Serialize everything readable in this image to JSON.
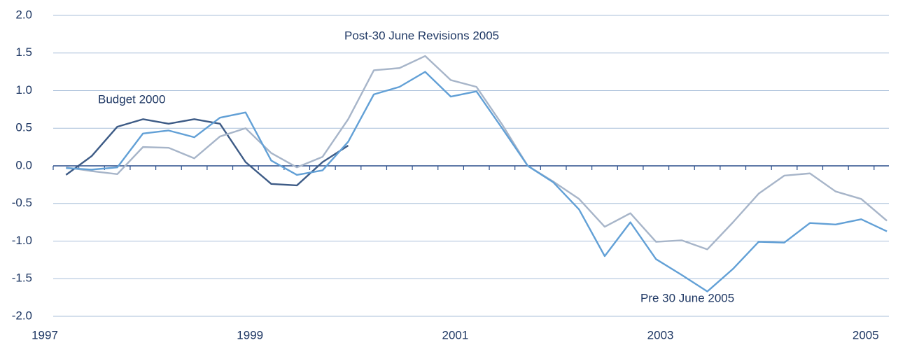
{
  "chart_data": {
    "type": "line",
    "annotations": [
      "Budget 2000",
      "Post-30 June Revisions 2005",
      "Pre 30 June 2005"
    ],
    "x": [
      1997.125,
      1997.375,
      1997.625,
      1997.875,
      1998.125,
      1998.375,
      1998.625,
      1998.875,
      1999.125,
      1999.375,
      1999.625,
      1999.875,
      2000.125,
      2000.375,
      2000.625,
      2000.875,
      2001.125,
      2001.375,
      2001.625,
      2001.875,
      2002.125,
      2002.375,
      2002.625,
      2002.875,
      2003.125,
      2003.375,
      2003.625,
      2003.875,
      2004.125,
      2004.375,
      2004.625,
      2004.875,
      2005.125
    ],
    "series": [
      {
        "name": "Budget 2000",
        "color": "#3d5b86",
        "values": [
          -0.12,
          0.13,
          0.52,
          0.62,
          0.56,
          0.62,
          0.56,
          0.05,
          -0.24,
          -0.26,
          0.05,
          0.27,
          null,
          null,
          null,
          null,
          null,
          null,
          null,
          null,
          null,
          null,
          null,
          null,
          null,
          null,
          null,
          null,
          null,
          null,
          null,
          null,
          null
        ]
      },
      {
        "name": "Post-30 June Revisions 2005",
        "color": "#a7b5c9",
        "values": [
          -0.02,
          -0.07,
          -0.11,
          0.25,
          0.24,
          0.1,
          0.39,
          0.5,
          0.17,
          -0.02,
          0.12,
          0.62,
          1.27,
          1.3,
          1.46,
          1.14,
          1.05,
          0.55,
          0.0,
          -0.21,
          -0.44,
          -0.81,
          -0.63,
          -1.01,
          -0.99,
          -1.11,
          -0.75,
          -0.37,
          -0.13,
          -0.1,
          -0.34,
          -0.44,
          -0.73
        ]
      },
      {
        "name": "Pre 30 June 2005",
        "color": "#62a0d6",
        "values": [
          -0.03,
          -0.05,
          -0.02,
          0.43,
          0.47,
          0.38,
          0.64,
          0.71,
          0.07,
          -0.12,
          -0.06,
          0.32,
          0.95,
          1.05,
          1.25,
          0.92,
          0.99,
          0.5,
          0.0,
          -0.22,
          -0.58,
          -1.2,
          -0.75,
          -1.24,
          -1.45,
          -1.67,
          -1.37,
          -1.01,
          -1.02,
          -0.76,
          -0.78,
          -0.71,
          -0.87
        ]
      }
    ],
    "xlim": [
      1997,
      2005.15
    ],
    "xticks": [
      1997,
      1999,
      2001,
      2003,
      2005
    ],
    "minor_xticks": [
      1997,
      1997.25,
      1997.5,
      1997.75,
      1998,
      1998.25,
      1998.5,
      1998.75,
      1999,
      1999.25,
      1999.5,
      1999.75,
      2000,
      2000.25,
      2000.5,
      2000.75,
      2001,
      2001.25,
      2001.5,
      2001.75,
      2002,
      2002.25,
      2002.5,
      2002.75,
      2003,
      2003.25,
      2003.5,
      2003.75,
      2004,
      2004.25,
      2004.5,
      2004.75,
      2005
    ],
    "ylim": [
      -2,
      2
    ],
    "yticks": [
      {
        "value": -2,
        "label": "-2.0"
      },
      {
        "value": -1.5,
        "label": "-1.5"
      },
      {
        "value": -1,
        "label": "-1.0"
      },
      {
        "value": -0.5,
        "label": "-0.5"
      },
      {
        "value": 0,
        "label": "0.0"
      },
      {
        "value": 0.5,
        "label": "0.5"
      },
      {
        "value": 1,
        "label": "1.0"
      },
      {
        "value": 1.5,
        "label": "1.5"
      },
      {
        "value": 2,
        "label": "2.0"
      }
    ],
    "grid": true
  }
}
